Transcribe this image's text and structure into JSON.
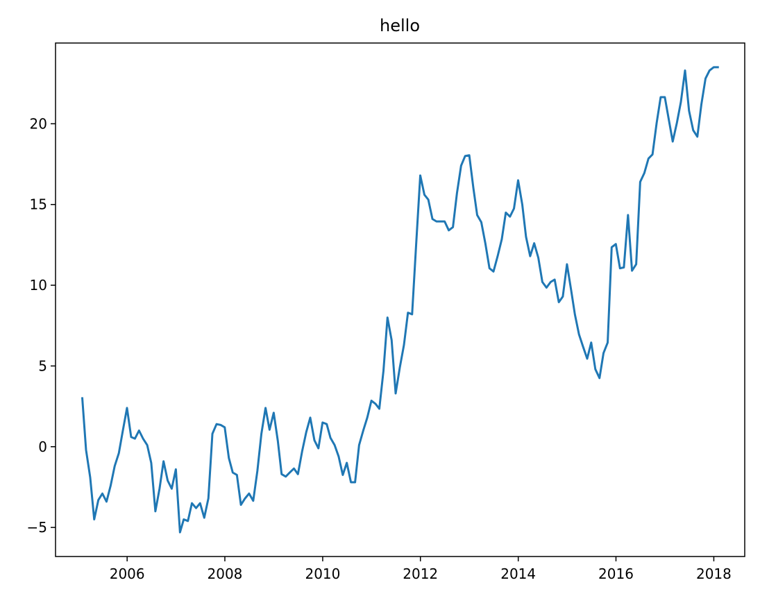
{
  "chart_data": {
    "type": "line",
    "title": "hello",
    "xlabel": "",
    "ylabel": "",
    "x_tick_labels": [
      "2006",
      "2008",
      "2010",
      "2012",
      "2014",
      "2016",
      "2018"
    ],
    "y_tick_labels": [
      "−5",
      "0",
      "5",
      "10",
      "15",
      "20"
    ],
    "y_ticks": [
      -5,
      0,
      5,
      10,
      15,
      20
    ],
    "xlim": [
      "2004-07-15",
      "2018-08-20"
    ],
    "ylim": [
      -6.8,
      25.0
    ],
    "grid": false,
    "series": [
      {
        "color": "#1f77b4",
        "x": [
          "2005-01-31",
          "2005-02-28",
          "2005-03-31",
          "2005-04-30",
          "2005-05-31",
          "2005-06-30",
          "2005-07-31",
          "2005-08-31",
          "2005-09-30",
          "2005-10-31",
          "2005-11-30",
          "2005-12-31",
          "2006-01-31",
          "2006-02-28",
          "2006-03-31",
          "2006-04-30",
          "2006-05-31",
          "2006-06-30",
          "2006-07-31",
          "2006-08-31",
          "2006-09-30",
          "2006-10-31",
          "2006-11-30",
          "2006-12-31",
          "2007-01-31",
          "2007-02-28",
          "2007-03-31",
          "2007-04-30",
          "2007-05-31",
          "2007-06-30",
          "2007-07-31",
          "2007-08-31",
          "2007-09-30",
          "2007-10-31",
          "2007-11-30",
          "2007-12-31",
          "2008-01-31",
          "2008-02-29",
          "2008-03-31",
          "2008-04-30",
          "2008-05-31",
          "2008-06-30",
          "2008-07-31",
          "2008-08-31",
          "2008-09-30",
          "2008-10-31",
          "2008-11-30",
          "2008-12-31",
          "2009-01-31",
          "2009-02-28",
          "2009-03-31",
          "2009-04-30",
          "2009-05-31",
          "2009-06-30",
          "2009-07-31",
          "2009-08-31",
          "2009-09-30",
          "2009-10-31",
          "2009-11-30",
          "2009-12-31",
          "2010-01-31",
          "2010-02-28",
          "2010-03-31",
          "2010-04-30",
          "2010-05-31",
          "2010-06-30",
          "2010-07-31",
          "2010-08-31",
          "2010-09-30",
          "2010-10-31",
          "2010-11-30",
          "2010-12-31",
          "2011-01-31",
          "2011-02-28",
          "2011-03-31",
          "2011-04-30",
          "2011-05-31",
          "2011-06-30",
          "2011-07-31",
          "2011-08-31",
          "2011-09-30",
          "2011-10-31",
          "2011-11-30",
          "2011-12-31",
          "2012-01-31",
          "2012-02-29",
          "2012-03-31",
          "2012-04-30",
          "2012-05-31",
          "2012-06-30",
          "2012-07-31",
          "2012-08-31",
          "2012-09-30",
          "2012-10-31",
          "2012-11-30",
          "2012-12-31",
          "2013-01-31",
          "2013-02-28",
          "2013-03-31",
          "2013-04-30",
          "2013-05-31",
          "2013-06-30",
          "2013-07-31",
          "2013-08-31",
          "2013-09-30",
          "2013-10-31",
          "2013-11-30",
          "2013-12-31",
          "2014-01-31",
          "2014-02-28",
          "2014-03-31",
          "2014-04-30",
          "2014-05-31",
          "2014-06-30",
          "2014-07-31",
          "2014-08-31",
          "2014-09-30",
          "2014-10-31",
          "2014-11-30",
          "2014-12-31",
          "2015-01-31",
          "2015-02-28",
          "2015-03-31",
          "2015-04-30",
          "2015-05-31",
          "2015-06-30",
          "2015-07-31",
          "2015-08-31",
          "2015-09-30",
          "2015-10-31",
          "2015-11-30",
          "2015-12-31",
          "2016-01-31",
          "2016-02-29",
          "2016-03-31",
          "2016-04-30",
          "2016-05-31",
          "2016-06-30",
          "2016-07-31",
          "2016-08-31",
          "2016-09-30",
          "2016-10-31",
          "2016-11-30",
          "2016-12-31",
          "2017-01-31",
          "2017-02-28",
          "2017-03-31",
          "2017-04-30",
          "2017-05-31",
          "2017-06-30",
          "2017-07-31",
          "2017-08-31",
          "2017-09-30",
          "2017-10-31",
          "2017-11-30",
          "2017-12-31",
          "2018-01-31"
        ],
        "y": [
          3.0,
          -0.2,
          -1.9,
          -4.5,
          -3.3,
          -2.9,
          -3.4,
          -2.4,
          -1.2,
          -0.4,
          1.0,
          2.4,
          0.6,
          0.5,
          1.0,
          0.5,
          0.1,
          -1.0,
          -4.0,
          -2.6,
          -0.9,
          -2.1,
          -2.6,
          -1.4,
          -5.3,
          -4.5,
          -4.6,
          -3.5,
          -3.8,
          -3.5,
          -4.4,
          -3.2,
          0.8,
          1.4,
          1.35,
          1.2,
          -0.7,
          -1.6,
          -1.75,
          -3.6,
          -3.2,
          -2.9,
          -3.35,
          -1.5,
          0.8,
          2.4,
          1.05,
          2.1,
          0.35,
          -1.7,
          -1.85,
          -1.6,
          -1.35,
          -1.7,
          -0.3,
          0.9,
          1.8,
          0.4,
          -0.1,
          1.5,
          1.4,
          0.55,
          0.1,
          -0.6,
          -1.75,
          -1.0,
          -2.2,
          -2.2,
          0.1,
          1.0,
          1.8,
          2.85,
          2.65,
          2.35,
          4.7,
          8.0,
          6.6,
          3.3,
          4.9,
          6.3,
          8.3,
          8.2,
          12.5,
          16.8,
          15.6,
          15.3,
          14.1,
          13.95,
          13.95,
          13.95,
          13.4,
          13.6,
          15.7,
          17.4,
          18.0,
          18.05,
          16.0,
          14.35,
          13.9,
          12.6,
          11.05,
          10.85,
          11.8,
          12.85,
          14.5,
          14.25,
          14.75,
          16.5,
          15.0,
          13.0,
          11.8,
          12.6,
          11.7,
          10.2,
          9.85,
          10.2,
          10.35,
          8.95,
          9.3,
          11.3,
          9.7,
          8.2,
          6.95,
          6.2,
          5.45,
          6.45,
          4.8,
          4.25,
          5.8,
          6.45,
          12.35,
          12.55,
          11.05,
          11.1,
          14.35,
          10.9,
          11.3,
          16.4,
          16.95,
          17.85,
          18.1,
          20.05,
          21.65,
          21.65,
          20.2,
          18.9,
          20.05,
          21.35,
          23.3,
          20.8,
          19.6,
          19.2,
          21.2,
          22.8,
          23.3,
          23.5,
          23.5
        ]
      }
    ]
  }
}
